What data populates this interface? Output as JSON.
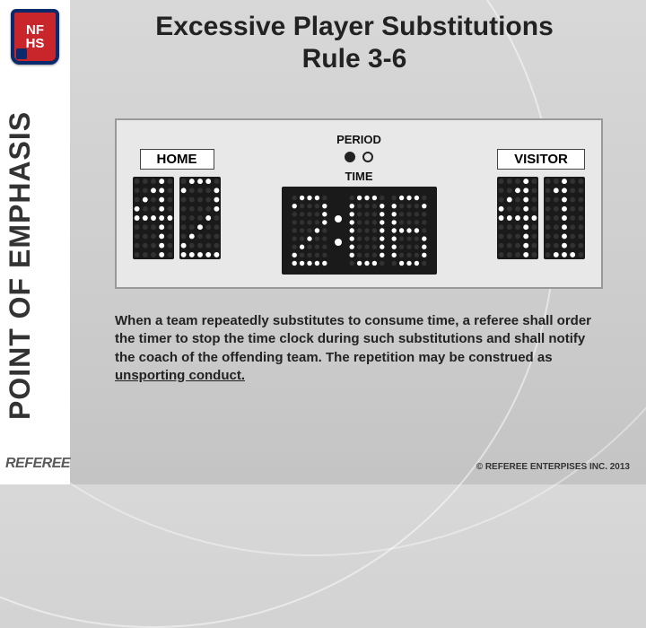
{
  "title_line1": "Excessive Player Substitutions",
  "title_line2": "Rule 3-6",
  "sidebar_label": "POINT OF EMPHASIS",
  "logo_top": "NF",
  "logo_bottom": "HS",
  "footer_brand": "REFEREE",
  "scoreboard": {
    "home_label": "HOME",
    "visitor_label": "VISITOR",
    "period_label": "PERIOD",
    "time_label": "TIME",
    "home_score": "42",
    "visitor_score": "41",
    "time": "2:06",
    "period_current": 1,
    "period_total": 2,
    "digit_bg": "#1a1a1a",
    "dot_on": "#ffffff",
    "dot_off": "#323232",
    "board_bg": "#e8e8e8",
    "board_border": "#999999",
    "digit_width": 46,
    "digit_height": 92
  },
  "body_text_prefix": "When a team repeatedly substitutes to consume time, a referee shall order the timer to stop the time clock during such substitutions and shall notify the coach of the offending team. The repetition may be construed as ",
  "body_text_underlined": "unsporting conduct.",
  "copyright": "© REFEREE ENTERPISES INC. 2013",
  "colors": {
    "page_bg_top": "#d8d8d8",
    "page_bg_bottom": "#c4c4c4",
    "stripe": "#ffffff",
    "logo_red": "#c9262c",
    "logo_blue": "#0b2a6b",
    "text": "#222222"
  },
  "typography": {
    "title_size_pt": 22,
    "sidebar_size_pt": 24,
    "body_size_pt": 11,
    "family": "Arial"
  }
}
